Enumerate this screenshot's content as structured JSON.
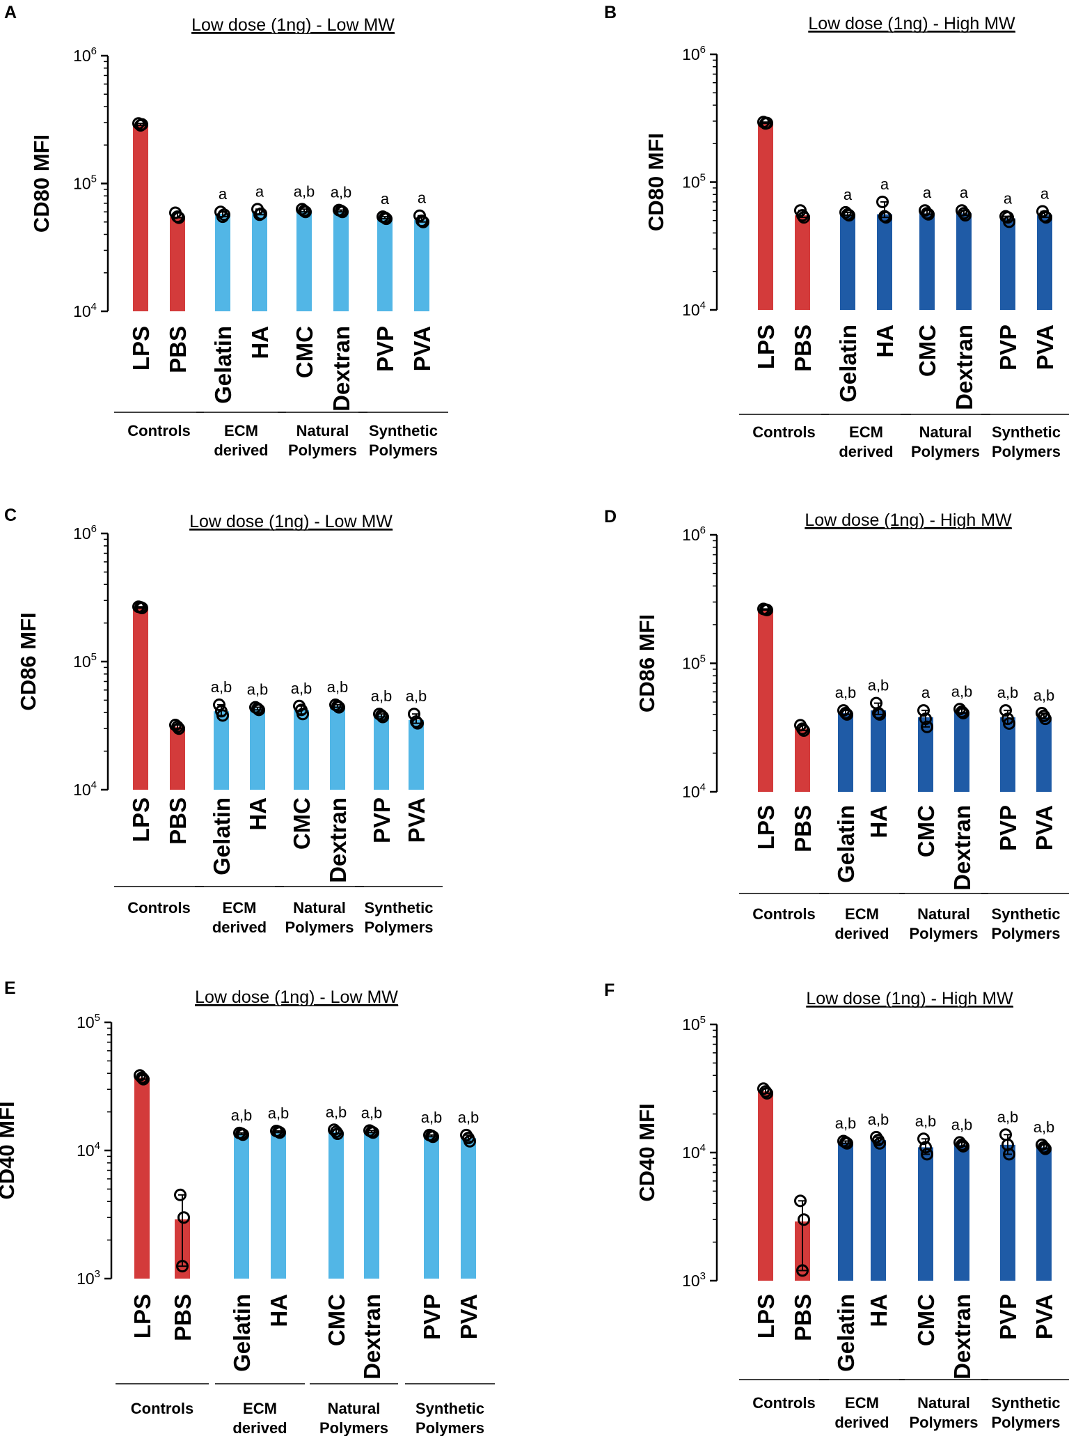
{
  "chart_data": [
    {
      "panel": "A",
      "type": "bar",
      "scale": "log",
      "title": "Low dose (1ng) - Low MW",
      "ylabel": "CD80 MFI",
      "ylim": [
        10000,
        1000000
      ],
      "ytick_labels": [
        {
          "base": "10",
          "exp": "4"
        },
        {
          "base": "10",
          "exp": "5"
        },
        {
          "base": "10",
          "exp": "6"
        }
      ],
      "categories": [
        "LPS",
        "PBS",
        "Gelatin",
        "HA",
        "CMC",
        "Dextran",
        "PVP",
        "PVA"
      ],
      "values": [
        290000,
        55000,
        58000,
        59000,
        61000,
        61000,
        54000,
        52000
      ],
      "points": [
        [
          295000,
          290000,
          285000
        ],
        [
          59000,
          54000,
          55000
        ],
        [
          60000,
          57000,
          55000
        ],
        [
          63000,
          58000,
          57000
        ],
        [
          63000,
          60000,
          61000
        ],
        [
          62000,
          60000,
          61000
        ],
        [
          55000,
          53000,
          54000
        ],
        [
          56000,
          50000,
          51000
        ]
      ],
      "annotations": [
        "",
        "",
        "a",
        "a",
        "a,b",
        "a,b",
        "a",
        "a"
      ],
      "groups": [
        {
          "name": [
            "Controls"
          ],
          "members": [
            0,
            1
          ]
        },
        {
          "name": [
            "ECM",
            "derived"
          ],
          "members": [
            2,
            3
          ]
        },
        {
          "name": [
            "Natural",
            "Polymers"
          ],
          "members": [
            4,
            5
          ]
        },
        {
          "name": [
            "Synthetic",
            "Polymers"
          ],
          "members": [
            6,
            7
          ]
        }
      ],
      "colors": [
        "#d33b3b",
        "#d33b3b",
        "#52b6e6",
        "#52b6e6",
        "#52b6e6",
        "#52b6e6",
        "#52b6e6",
        "#52b6e6"
      ]
    },
    {
      "panel": "B",
      "type": "bar",
      "scale": "log",
      "title": "Low dose (1ng) - High MW",
      "ylabel": "CD80 MFI",
      "ylim": [
        10000,
        1000000
      ],
      "ytick_labels": [
        {
          "base": "10",
          "exp": "4"
        },
        {
          "base": "10",
          "exp": "5"
        },
        {
          "base": "10",
          "exp": "6"
        }
      ],
      "categories": [
        "LPS",
        "PBS",
        "Gelatin",
        "HA",
        "CMC",
        "Dextran",
        "PVP",
        "PVA"
      ],
      "values": [
        290000,
        55000,
        56000,
        56000,
        57000,
        57000,
        52000,
        55000
      ],
      "points": [
        [
          295000,
          290000,
          288000
        ],
        [
          60000,
          53000,
          55000
        ],
        [
          58000,
          55000,
          56000
        ],
        [
          70000,
          53000,
          54000
        ],
        [
          60000,
          56000,
          57000
        ],
        [
          60000,
          55000,
          57000
        ],
        [
          54000,
          49000,
          53000
        ],
        [
          59000,
          53000,
          54000
        ]
      ],
      "annotations": [
        "",
        "",
        "a",
        "a",
        "a",
        "a",
        "a",
        "a"
      ],
      "groups": [
        {
          "name": [
            "Controls"
          ],
          "members": [
            0,
            1
          ]
        },
        {
          "name": [
            "ECM",
            "derived"
          ],
          "members": [
            2,
            3
          ]
        },
        {
          "name": [
            "Natural",
            "Polymers"
          ],
          "members": [
            4,
            5
          ]
        },
        {
          "name": [
            "Synthetic",
            "Polymers"
          ],
          "members": [
            6,
            7
          ]
        }
      ],
      "colors": [
        "#d33b3b",
        "#d33b3b",
        "#1f5ba6",
        "#1f5ba6",
        "#1f5ba6",
        "#1f5ba6",
        "#1f5ba6",
        "#1f5ba6"
      ]
    },
    {
      "panel": "C",
      "type": "bar",
      "scale": "log",
      "title": "Low dose (1ng) - Low MW",
      "ylabel": "CD86 MFI",
      "ylim": [
        10000,
        1000000
      ],
      "ytick_labels": [
        {
          "base": "10",
          "exp": "4"
        },
        {
          "base": "10",
          "exp": "5"
        },
        {
          "base": "10",
          "exp": "6"
        }
      ],
      "categories": [
        "LPS",
        "PBS",
        "Gelatin",
        "HA",
        "CMC",
        "Dextran",
        "PVP",
        "PVA"
      ],
      "values": [
        265000,
        31000,
        41000,
        43000,
        42000,
        45000,
        38000,
        35000
      ],
      "points": [
        [
          268000,
          262000,
          265000
        ],
        [
          32000,
          30000,
          31000
        ],
        [
          46000,
          38000,
          41000
        ],
        [
          44000,
          42000,
          43000
        ],
        [
          45000,
          39000,
          42000
        ],
        [
          46000,
          44000,
          45000
        ],
        [
          39000,
          37000,
          38000
        ],
        [
          39000,
          33000,
          34000
        ]
      ],
      "annotations": [
        "",
        "",
        "a,b",
        "a,b",
        "a,b",
        "a,b",
        "a,b",
        "a,b"
      ],
      "groups": [
        {
          "name": [
            "Controls"
          ],
          "members": [
            0,
            1
          ]
        },
        {
          "name": [
            "ECM",
            "derived"
          ],
          "members": [
            2,
            3
          ]
        },
        {
          "name": [
            "Natural",
            "Polymers"
          ],
          "members": [
            4,
            5
          ]
        },
        {
          "name": [
            "Synthetic",
            "Polymers"
          ],
          "members": [
            6,
            7
          ]
        }
      ],
      "colors": [
        "#d33b3b",
        "#d33b3b",
        "#52b6e6",
        "#52b6e6",
        "#52b6e6",
        "#52b6e6",
        "#52b6e6",
        "#52b6e6"
      ]
    },
    {
      "panel": "D",
      "type": "bar",
      "scale": "log",
      "title": "Low dose (1ng) - High MW",
      "ylabel": "CD86 MFI",
      "ylim": [
        10000,
        1000000
      ],
      "ytick_labels": [
        {
          "base": "10",
          "exp": "4"
        },
        {
          "base": "10",
          "exp": "5"
        },
        {
          "base": "10",
          "exp": "6"
        }
      ],
      "categories": [
        "LPS",
        "PBS",
        "Gelatin",
        "HA",
        "CMC",
        "Dextran",
        "PVP",
        "PVA"
      ],
      "values": [
        262000,
        31000,
        41000,
        43000,
        38000,
        42000,
        38000,
        38000
      ],
      "points": [
        [
          265000,
          260000,
          262000
        ],
        [
          33000,
          30000,
          31000
        ],
        [
          43000,
          40000,
          41000
        ],
        [
          49000,
          40000,
          41000
        ],
        [
          43000,
          32000,
          37000
        ],
        [
          44000,
          41000,
          42000
        ],
        [
          43000,
          34000,
          37000
        ],
        [
          41000,
          37000,
          39000
        ]
      ],
      "annotations": [
        "",
        "",
        "a,b",
        "a,b",
        "a",
        "a,b",
        "a,b",
        "a,b"
      ],
      "groups": [
        {
          "name": [
            "Controls"
          ],
          "members": [
            0,
            1
          ]
        },
        {
          "name": [
            "ECM",
            "derived"
          ],
          "members": [
            2,
            3
          ]
        },
        {
          "name": [
            "Natural",
            "Polymers"
          ],
          "members": [
            4,
            5
          ]
        },
        {
          "name": [
            "Synthetic",
            "Polymers"
          ],
          "members": [
            6,
            7
          ]
        }
      ],
      "colors": [
        "#d33b3b",
        "#d33b3b",
        "#1f5ba6",
        "#1f5ba6",
        "#1f5ba6",
        "#1f5ba6",
        "#1f5ba6",
        "#1f5ba6"
      ]
    },
    {
      "panel": "E",
      "type": "bar",
      "scale": "log",
      "title": "Low dose (1ng) - Low MW",
      "ylabel": "CD40 MFI",
      "ylim": [
        1000,
        100000
      ],
      "ytick_labels": [
        {
          "base": "10",
          "exp": "3"
        },
        {
          "base": "10",
          "exp": "4"
        },
        {
          "base": "10",
          "exp": "5"
        }
      ],
      "categories": [
        "LPS",
        "PBS",
        "Gelatin",
        "HA",
        "CMC",
        "Dextran",
        "PVP",
        "PVA"
      ],
      "values": [
        37000,
        2900,
        13500,
        14000,
        14000,
        14000,
        13000,
        12500
      ],
      "points": [
        [
          38500,
          36000,
          37000
        ],
        [
          4500,
          3000,
          1250
        ],
        [
          13700,
          13300,
          13500
        ],
        [
          14200,
          13800,
          14000
        ],
        [
          14500,
          13500,
          14000
        ],
        [
          14300,
          13800,
          14000
        ],
        [
          13200,
          12800,
          13000
        ],
        [
          13200,
          11800,
          12500
        ]
      ],
      "annotations": [
        "",
        "",
        "a,b",
        "a,b",
        "a,b",
        "a,b",
        "a,b",
        "a,b"
      ],
      "groups": [
        {
          "name": [
            "Controls"
          ],
          "members": [
            0,
            1
          ]
        },
        {
          "name": [
            "ECM",
            "derived"
          ],
          "members": [
            2,
            3
          ]
        },
        {
          "name": [
            "Natural",
            "Polymers"
          ],
          "members": [
            4,
            5
          ]
        },
        {
          "name": [
            "Synthetic",
            "Polymers"
          ],
          "members": [
            6,
            7
          ]
        }
      ],
      "colors": [
        "#d33b3b",
        "#d33b3b",
        "#52b6e6",
        "#52b6e6",
        "#52b6e6",
        "#52b6e6",
        "#52b6e6",
        "#52b6e6"
      ]
    },
    {
      "panel": "F",
      "type": "bar",
      "scale": "log",
      "title": "Low dose (1ng) - High MW",
      "ylabel": "CD40 MFI",
      "ylim": [
        1000,
        100000
      ],
      "ytick_labels": [
        {
          "base": "10",
          "exp": "3"
        },
        {
          "base": "10",
          "exp": "4"
        },
        {
          "base": "10",
          "exp": "5"
        }
      ],
      "categories": [
        "LPS",
        "PBS",
        "Gelatin",
        "HA",
        "CMC",
        "Dextran",
        "PVP",
        "PVA"
      ],
      "values": [
        30000,
        2900,
        12000,
        12500,
        11000,
        11500,
        11500,
        11000
      ],
      "points": [
        [
          31500,
          29000,
          30000
        ],
        [
          4200,
          3000,
          1200
        ],
        [
          12300,
          11800,
          12000
        ],
        [
          13200,
          11800,
          12500
        ],
        [
          12800,
          9700,
          11000
        ],
        [
          12000,
          11200,
          11500
        ],
        [
          13800,
          9700,
          11500
        ],
        [
          11500,
          10700,
          11000
        ]
      ],
      "annotations": [
        "",
        "",
        "a,b",
        "a,b",
        "a,b",
        "a,b",
        "a,b",
        "a,b"
      ],
      "groups": [
        {
          "name": [
            "Controls"
          ],
          "members": [
            0,
            1
          ]
        },
        {
          "name": [
            "ECM",
            "derived"
          ],
          "members": [
            2,
            3
          ]
        },
        {
          "name": [
            "Natural",
            "Polymers"
          ],
          "members": [
            4,
            5
          ]
        },
        {
          "name": [
            "Synthetic",
            "Polymers"
          ],
          "members": [
            6,
            7
          ]
        }
      ],
      "colors": [
        "#d33b3b",
        "#d33b3b",
        "#1f5ba6",
        "#1f5ba6",
        "#1f5ba6",
        "#1f5ba6",
        "#1f5ba6",
        "#1f5ba6"
      ]
    }
  ]
}
